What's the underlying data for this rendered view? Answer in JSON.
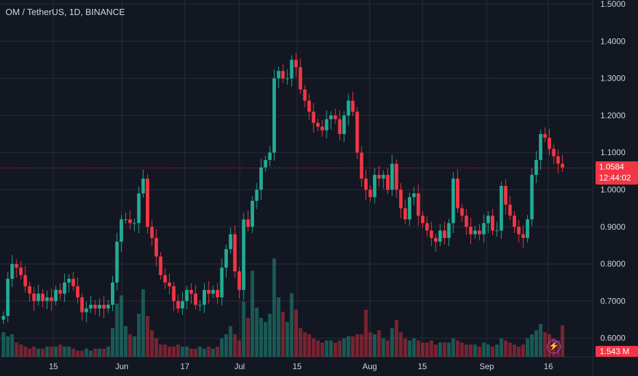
{
  "header": {
    "symbol_title": "OM / TetherUS, 1D, BINANCE"
  },
  "price_axis": {
    "ticks": [
      "1.5000",
      "1.4000",
      "1.3000",
      "1.2000",
      "1.1000",
      "1.0000",
      "0.9000",
      "0.8000",
      "0.7000",
      "0.6000"
    ]
  },
  "time_axis": {
    "ticks": [
      "15",
      "Jun",
      "17",
      "Jul",
      "15",
      "Aug",
      "15",
      "Sep",
      "16"
    ]
  },
  "last_price": {
    "value": "1.0584",
    "countdown": "12:44:02",
    "color": "#f23645"
  },
  "volume_label": {
    "value": "1.543 M",
    "color": "#f23645"
  },
  "colors": {
    "up": "#22ab94",
    "down": "#f23645",
    "background": "#131722",
    "grid": "#2a2e39",
    "alert_icon": "#a14bd8"
  },
  "icons": {
    "alert": "lightning-bolt-icon"
  },
  "chart_data": {
    "type": "candlestick",
    "symbol": "OM / TetherUS",
    "interval": "1D",
    "exchange": "BINANCE",
    "ylim": [
      0.6,
      1.5
    ],
    "grid": true,
    "x_ticks": [
      "15",
      "Jun",
      "17",
      "Jul",
      "15",
      "Aug",
      "15",
      "Sep",
      "16"
    ],
    "last_price": 1.0584,
    "close": [
      0.66,
      0.76,
      0.8,
      0.79,
      0.77,
      0.74,
      0.72,
      0.7,
      0.72,
      0.7,
      0.71,
      0.7,
      0.73,
      0.72,
      0.75,
      0.76,
      0.74,
      0.71,
      0.67,
      0.68,
      0.69,
      0.68,
      0.69,
      0.68,
      0.69,
      0.75,
      0.86,
      0.92,
      0.92,
      0.91,
      0.91,
      0.99,
      1.03,
      0.9,
      0.87,
      0.82,
      0.77,
      0.75,
      0.74,
      0.7,
      0.68,
      0.7,
      0.73,
      0.72,
      0.69,
      0.69,
      0.73,
      0.72,
      0.73,
      0.71,
      0.79,
      0.84,
      0.88,
      0.78,
      0.73,
      0.92,
      0.9,
      0.97,
      1.0,
      1.06,
      1.08,
      1.1,
      1.3,
      1.32,
      1.3,
      1.3,
      1.35,
      1.33,
      1.27,
      1.24,
      1.21,
      1.18,
      1.17,
      1.16,
      1.19,
      1.2,
      1.19,
      1.15,
      1.2,
      1.24,
      1.21,
      1.1,
      1.03,
      1.0,
      0.98,
      1.04,
      1.03,
      1.04,
      1.0,
      1.07,
      1.0,
      0.95,
      0.92,
      0.98,
      0.99,
      0.93,
      0.91,
      0.89,
      0.87,
      0.86,
      0.89,
      0.87,
      0.91,
      1.03,
      0.95,
      0.93,
      0.9,
      0.88,
      0.89,
      0.88,
      0.91,
      0.93,
      0.89,
      0.89,
      1.01,
      0.96,
      0.93,
      0.9,
      0.88,
      0.87,
      0.92,
      1.04,
      1.08,
      1.15,
      1.14,
      1.11,
      1.09,
      1.07,
      1.06
    ],
    "volume_m": [
      1.2,
      1.0,
      1.1,
      0.7,
      0.6,
      0.5,
      0.4,
      0.5,
      0.4,
      0.4,
      0.5,
      0.5,
      0.5,
      0.6,
      0.5,
      0.5,
      0.4,
      0.3,
      0.3,
      0.4,
      0.3,
      0.4,
      0.4,
      0.4,
      0.5,
      1.4,
      2.6,
      3.0,
      1.5,
      1.1,
      1.0,
      2.1,
      3.3,
      2.0,
      1.3,
      0.9,
      0.6,
      0.6,
      0.5,
      0.5,
      0.6,
      0.5,
      0.5,
      0.4,
      0.4,
      0.5,
      0.4,
      0.5,
      0.4,
      0.5,
      0.9,
      1.1,
      1.5,
      1.1,
      0.8,
      2.7,
      1.9,
      4.2,
      2.4,
      1.9,
      1.7,
      2.1,
      4.8,
      2.9,
      2.2,
      1.7,
      3.1,
      2.3,
      1.4,
      1.2,
      1.1,
      0.9,
      0.8,
      0.7,
      0.8,
      0.8,
      0.7,
      0.8,
      0.9,
      1.0,
      1.0,
      1.1,
      1.1,
      2.3,
      1.2,
      1.1,
      1.3,
      0.9,
      0.8,
      1.4,
      1.8,
      1.2,
      0.9,
      0.8,
      0.9,
      0.8,
      0.7,
      0.7,
      0.8,
      0.6,
      0.7,
      0.7,
      0.7,
      0.9,
      0.8,
      0.7,
      0.6,
      0.6,
      0.6,
      0.5,
      0.7,
      0.6,
      0.5,
      0.6,
      0.9,
      0.8,
      0.7,
      0.6,
      0.5,
      0.6,
      0.9,
      1.1,
      1.3,
      1.6,
      1.2,
      1.1,
      0.9,
      0.8,
      1.543
    ]
  }
}
